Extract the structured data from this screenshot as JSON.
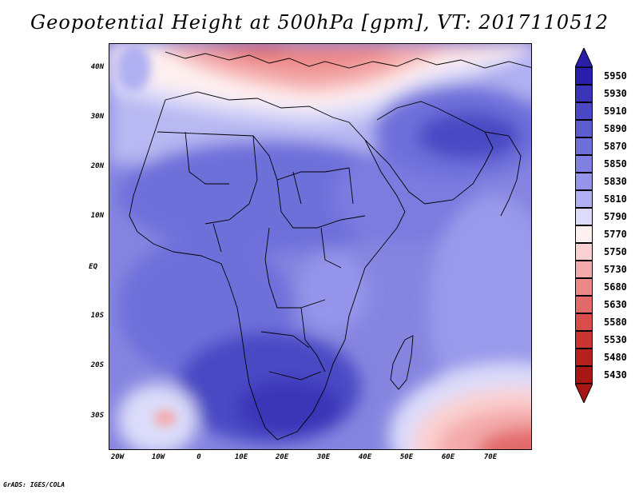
{
  "title": "Geopotential Height at 500hPa [gpm], VT: 2017110512",
  "footer": "GrADS: IGES/COLA",
  "axes": {
    "lat_labels": [
      "40N",
      "30N",
      "20N",
      "10N",
      "EQ",
      "10S",
      "20S",
      "30S"
    ],
    "lon_labels": [
      "20W",
      "10W",
      "0",
      "10E",
      "20E",
      "30E",
      "40E",
      "50E",
      "60E",
      "70E"
    ]
  },
  "colorbar": {
    "levels": [
      "5950",
      "5930",
      "5910",
      "5890",
      "5870",
      "5850",
      "5830",
      "5810",
      "5790",
      "5770",
      "5750",
      "5730",
      "5680",
      "5630",
      "5580",
      "5530",
      "5480",
      "5430"
    ],
    "colors": [
      "#2a1faa",
      "#3a35b8",
      "#4a48c4",
      "#5d5dd0",
      "#6e6fda",
      "#8080e2",
      "#9494ea",
      "#b0b0f2",
      "#dcdcfa",
      "#fff0f0",
      "#fbd0d0",
      "#f4aaaa",
      "#ec8888",
      "#e26a6a",
      "#d84c4c",
      "#cc3434",
      "#b82020",
      "#a81616"
    ],
    "top_arrow_color": "#2a1faa",
    "bottom_arrow_color": "#a81616"
  },
  "map": {
    "region": "Africa",
    "ocean_color": "#8a8ae6"
  }
}
